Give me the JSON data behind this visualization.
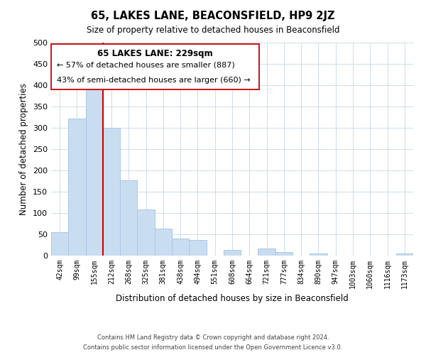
{
  "title": "65, LAKES LANE, BEACONSFIELD, HP9 2JZ",
  "subtitle": "Size of property relative to detached houses in Beaconsfield",
  "xlabel": "Distribution of detached houses by size in Beaconsfield",
  "ylabel": "Number of detached properties",
  "bar_color": "#c9ddf0",
  "bar_edge_color": "#a8c8e8",
  "vline_color": "#cc0000",
  "vline_x_index": 3,
  "categories": [
    "42sqm",
    "99sqm",
    "155sqm",
    "212sqm",
    "268sqm",
    "325sqm",
    "381sqm",
    "438sqm",
    "494sqm",
    "551sqm",
    "608sqm",
    "664sqm",
    "721sqm",
    "777sqm",
    "834sqm",
    "890sqm",
    "947sqm",
    "1003sqm",
    "1060sqm",
    "1116sqm",
    "1173sqm"
  ],
  "values": [
    55,
    322,
    400,
    300,
    176,
    108,
    63,
    40,
    37,
    0,
    13,
    0,
    17,
    9,
    0,
    5,
    0,
    0,
    0,
    0,
    5
  ],
  "ylim": [
    0,
    500
  ],
  "yticks": [
    0,
    50,
    100,
    150,
    200,
    250,
    300,
    350,
    400,
    450,
    500
  ],
  "annotation_title": "65 LAKES LANE: 229sqm",
  "annotation_line1": "← 57% of detached houses are smaller (887)",
  "annotation_line2": "43% of semi-detached houses are larger (660) →",
  "footer1": "Contains HM Land Registry data © Crown copyright and database right 2024.",
  "footer2": "Contains public sector information licensed under the Open Government Licence v3.0.",
  "background_color": "#ffffff",
  "grid_color": "#ccdcec"
}
